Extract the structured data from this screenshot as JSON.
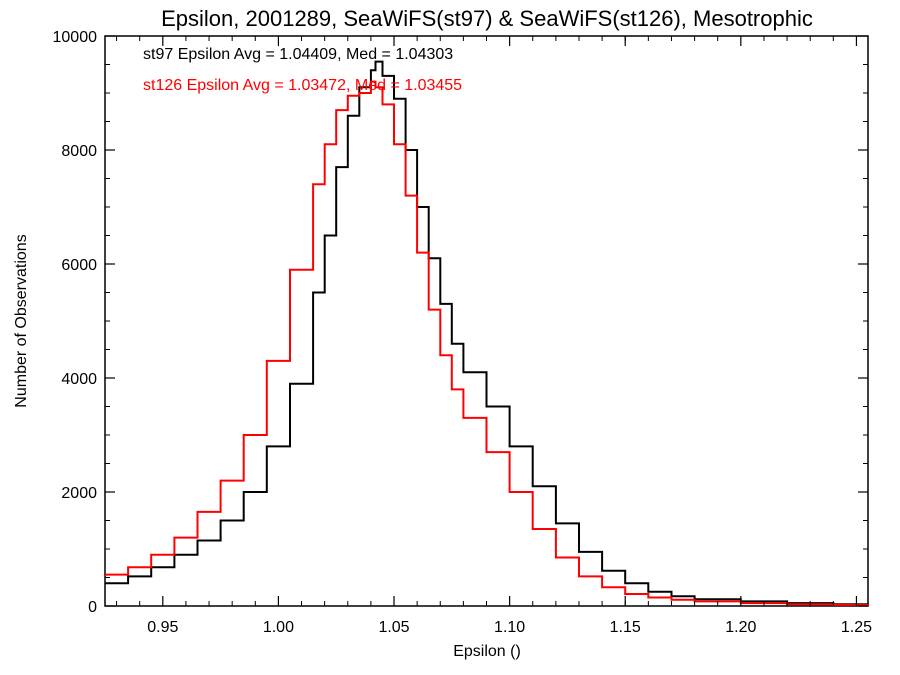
{
  "chart_data": {
    "type": "line",
    "step": true,
    "title": "Epsilon, 2001289, SeaWiFS(st97) & SeaWiFS(st126), Mesotrophic",
    "xlabel": "Epsilon ()",
    "ylabel": "Number of Observations",
    "xlim": [
      0.925,
      1.255
    ],
    "ylim": [
      0,
      10000
    ],
    "xticks": [
      0.95,
      1.0,
      1.05,
      1.1,
      1.15,
      1.2,
      1.25
    ],
    "xtick_labels": [
      "0.95",
      "1.00",
      "1.05",
      "1.10",
      "1.15",
      "1.20",
      "1.25"
    ],
    "yticks": [
      0,
      2000,
      4000,
      6000,
      8000,
      10000
    ],
    "ytick_labels": [
      "0",
      "2000",
      "4000",
      "6000",
      "8000",
      "10000"
    ],
    "x": [
      0.925,
      0.935,
      0.945,
      0.955,
      0.965,
      0.975,
      0.985,
      0.995,
      1.005,
      1.015,
      1.02,
      1.025,
      1.03,
      1.035,
      1.04,
      1.042,
      1.045,
      1.05,
      1.055,
      1.06,
      1.065,
      1.07,
      1.075,
      1.08,
      1.09,
      1.1,
      1.11,
      1.12,
      1.13,
      1.14,
      1.15,
      1.16,
      1.17,
      1.18,
      1.2,
      1.22,
      1.24,
      1.255
    ],
    "series": [
      {
        "name": "st97",
        "color": "#000000",
        "values": [
          400,
          520,
          680,
          900,
          1150,
          1500,
          2000,
          2800,
          3900,
          5500,
          6500,
          7700,
          8600,
          9100,
          9400,
          9550,
          9300,
          8900,
          8000,
          7000,
          6100,
          5300,
          4600,
          4100,
          3500,
          2800,
          2100,
          1450,
          950,
          620,
          400,
          250,
          170,
          120,
          80,
          50,
          30,
          20
        ]
      },
      {
        "name": "st126",
        "color": "#ff0000",
        "values": [
          550,
          680,
          900,
          1200,
          1650,
          2200,
          3000,
          4300,
          5900,
          7400,
          8100,
          8700,
          8950,
          9000,
          9200,
          9100,
          8800,
          8100,
          7200,
          6200,
          5200,
          4400,
          3800,
          3300,
          2700,
          2000,
          1350,
          850,
          520,
          330,
          210,
          150,
          110,
          80,
          50,
          30,
          20,
          15
        ]
      }
    ],
    "annotations": [
      {
        "text": "st97 Epsilon Avg = 1.04409, Med = 1.04303",
        "color": "#000000"
      },
      {
        "text": "st126 Epsilon Avg = 1.03472, Med = 1.03455",
        "color": "#ff0000"
      }
    ],
    "grid": false,
    "legend": "none"
  }
}
